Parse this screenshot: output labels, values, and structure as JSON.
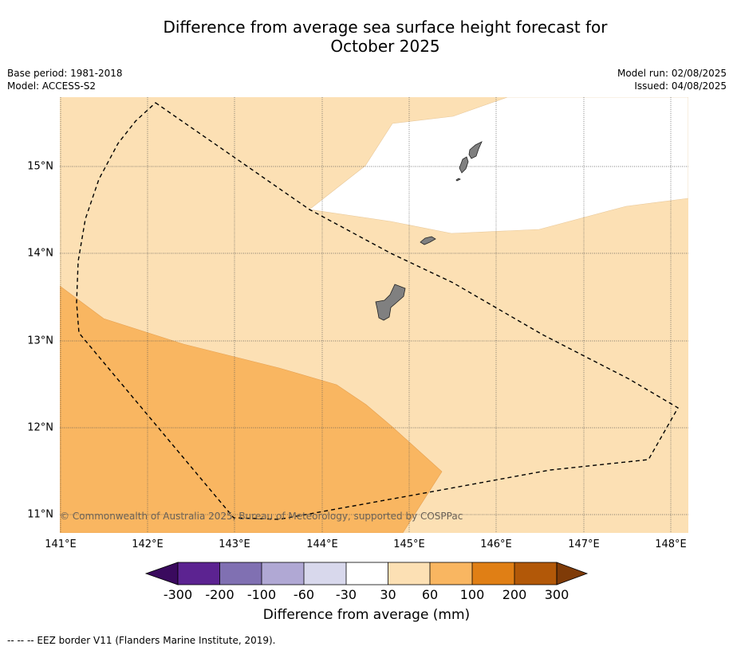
{
  "title_line1": "Difference from average sea surface height forecast for",
  "title_line2": "October 2025",
  "meta_left": {
    "base_period": "Base period: 1981-2018",
    "model": "Model: ACCESS-S2"
  },
  "meta_right": {
    "model_run": "Model run: 02/08/2025",
    "issued": "Issued: 04/08/2025"
  },
  "map": {
    "lat_labels": [
      "15°N",
      "14°N",
      "13°N",
      "12°N",
      "11°N"
    ],
    "lon_labels": [
      "141°E",
      "142°E",
      "143°E",
      "144°E",
      "145°E",
      "146°E",
      "147°E",
      "148°E"
    ],
    "copyright": "© Commonwealth of Australia 2025, Bureau of Meteorology, supported by COSPPac",
    "colors": {
      "light_orange": "#fce0b4",
      "orange": "#f9b661",
      "land": "#808080",
      "white": "#ffffff"
    }
  },
  "colorbar": {
    "labels": [
      "-300",
      "-200",
      "-100",
      "-60",
      "-30",
      "30",
      "60",
      "100",
      "200",
      "300"
    ],
    "colors": [
      "#3a0a5e",
      "#5c2391",
      "#8070b2",
      "#b0a8d4",
      "#d8d8ec",
      "#ffffff",
      "#fce0b4",
      "#f9b661",
      "#e07f15",
      "#b25808",
      "#7f3b08"
    ],
    "title": "Difference from average (mm)"
  },
  "footer": "--  --  -- EEZ border V11 (Flanders Marine Institute, 2019)."
}
